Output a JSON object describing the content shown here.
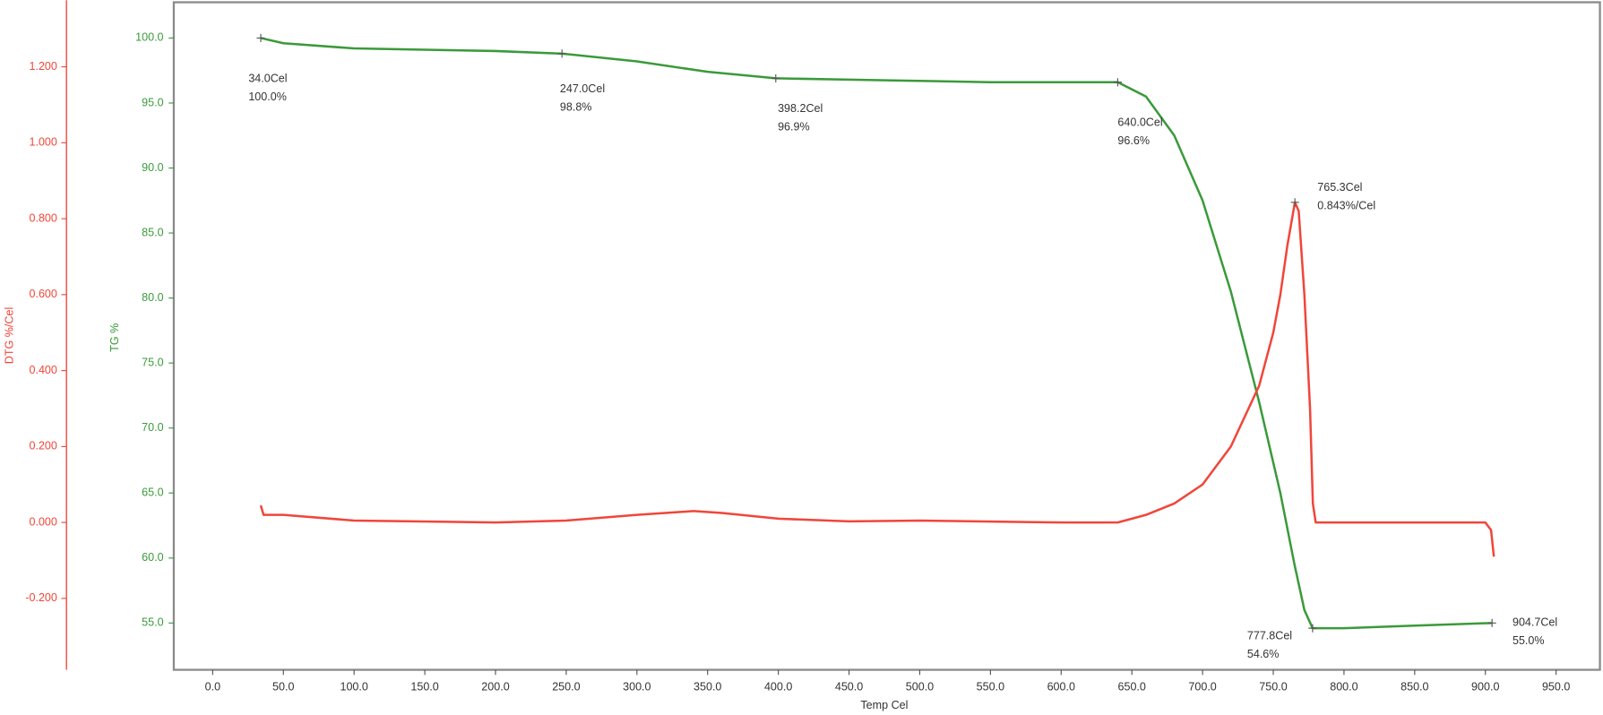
{
  "chart_data": {
    "type": "line",
    "y_label": "TG %",
    "y2_label": "DTG %/Cel",
    "x_label": "Temp Cel",
    "xlim": [
      -27.5,
      981
    ],
    "ylim": [
      51.4,
      102.75
    ],
    "y2lim": [
      -0.388,
      1.37
    ],
    "xticks": [
      {
        "value": 0,
        "label": "0.0"
      },
      {
        "value": 50,
        "label": "50.0"
      },
      {
        "value": 100,
        "label": "100.0"
      },
      {
        "value": 150,
        "label": "150.0"
      },
      {
        "value": 200,
        "label": "200.0"
      },
      {
        "value": 250,
        "label": "250.0"
      },
      {
        "value": 300,
        "label": "300.0"
      },
      {
        "value": 350,
        "label": "350.0"
      },
      {
        "value": 400,
        "label": "400.0"
      },
      {
        "value": 450,
        "label": "450.0"
      },
      {
        "value": 500,
        "label": "500.0"
      },
      {
        "value": 550,
        "label": "550.0"
      },
      {
        "value": 600,
        "label": "600.0"
      },
      {
        "value": 650,
        "label": "650.0"
      },
      {
        "value": 700,
        "label": "700.0"
      },
      {
        "value": 750,
        "label": "750.0"
      },
      {
        "value": 800,
        "label": "800.0"
      },
      {
        "value": 850,
        "label": "850.0"
      },
      {
        "value": 900,
        "label": "900.0"
      },
      {
        "value": 950,
        "label": "950.0"
      }
    ],
    "yticks": [
      {
        "value": 55,
        "label": "55.0"
      },
      {
        "value": 60,
        "label": "60.0"
      },
      {
        "value": 65,
        "label": "65.0"
      },
      {
        "value": 70,
        "label": "70.0"
      },
      {
        "value": 75,
        "label": "75.0"
      },
      {
        "value": 80,
        "label": "80.0"
      },
      {
        "value": 85,
        "label": "85.0"
      },
      {
        "value": 90,
        "label": "90.0"
      },
      {
        "value": 95,
        "label": "95.0"
      },
      {
        "value": 100,
        "label": "100.0"
      }
    ],
    "y2ticks": [
      {
        "value": -0.2,
        "label": "-0.200"
      },
      {
        "value": 0,
        "label": "0.000"
      },
      {
        "value": 0.2,
        "label": "0.200"
      },
      {
        "value": 0.4,
        "label": "0.400"
      },
      {
        "value": 0.6,
        "label": "0.600"
      },
      {
        "value": 0.8,
        "label": "0.800"
      },
      {
        "value": 1.0,
        "label": "1.000"
      },
      {
        "value": 1.2,
        "label": "1.200"
      }
    ],
    "y_color": "#3a9a3a",
    "y2_color": "#f0463a",
    "series": [
      {
        "color": "#3a9a3a",
        "axis": "y",
        "x": [
          34,
          50,
          100,
          150,
          200,
          247,
          300,
          350,
          398.2,
          450,
          500,
          550,
          600,
          640,
          660,
          680,
          700,
          720,
          740,
          755,
          765,
          772,
          777.8,
          800,
          850,
          904.7
        ],
        "values": [
          100.0,
          99.6,
          99.2,
          99.1,
          99.0,
          98.8,
          98.2,
          97.4,
          96.9,
          96.8,
          96.7,
          96.6,
          96.6,
          96.6,
          95.5,
          92.5,
          87.5,
          80.5,
          72,
          65,
          59.5,
          56,
          54.6,
          54.6,
          54.8,
          55.0
        ]
      },
      {
        "color": "#f0463a",
        "axis": "y2",
        "x": [
          34,
          36,
          50,
          100,
          200,
          250,
          300,
          340,
          360,
          400,
          450,
          500,
          600,
          640,
          660,
          680,
          700,
          720,
          740,
          750,
          755,
          760,
          765.3,
          768,
          772,
          776,
          778,
          780,
          800,
          850,
          900,
          904,
          906
        ],
        "values": [
          0.045,
          0.02,
          0.02,
          0.005,
          0.0,
          0.005,
          0.02,
          0.03,
          0.025,
          0.01,
          0.003,
          0.005,
          0.0,
          0.0,
          0.02,
          0.05,
          0.1,
          0.2,
          0.36,
          0.5,
          0.6,
          0.73,
          0.843,
          0.82,
          0.6,
          0.3,
          0.05,
          0.0,
          0.0,
          0.0,
          0.0,
          -0.02,
          -0.09
        ]
      }
    ],
    "annotations": [
      {
        "x": 34.0,
        "y": 100.0,
        "axis": "y",
        "lines": [
          "34.0Cel",
          "100.0%"
        ]
      },
      {
        "x": 247.0,
        "y": 98.8,
        "axis": "y",
        "lines": [
          "247.0Cel",
          "98.8%"
        ]
      },
      {
        "x": 398.2,
        "y": 96.9,
        "axis": "y",
        "lines": [
          "398.2Cel",
          "96.9%"
        ]
      },
      {
        "x": 640.0,
        "y": 96.6,
        "axis": "y",
        "lines": [
          "640.0Cel",
          "96.6%"
        ]
      },
      {
        "x": 765.3,
        "y": 0.843,
        "axis": "y2",
        "lines": [
          "765.3Cel",
          "0.843%/Cel"
        ]
      },
      {
        "x": 777.8,
        "y": 54.6,
        "axis": "y",
        "lines": [
          "777.8Cel",
          "54.6%"
        ]
      },
      {
        "x": 904.7,
        "y": 55.0,
        "axis": "y",
        "lines": [
          "904.7Cel",
          "55.0%"
        ]
      }
    ]
  }
}
